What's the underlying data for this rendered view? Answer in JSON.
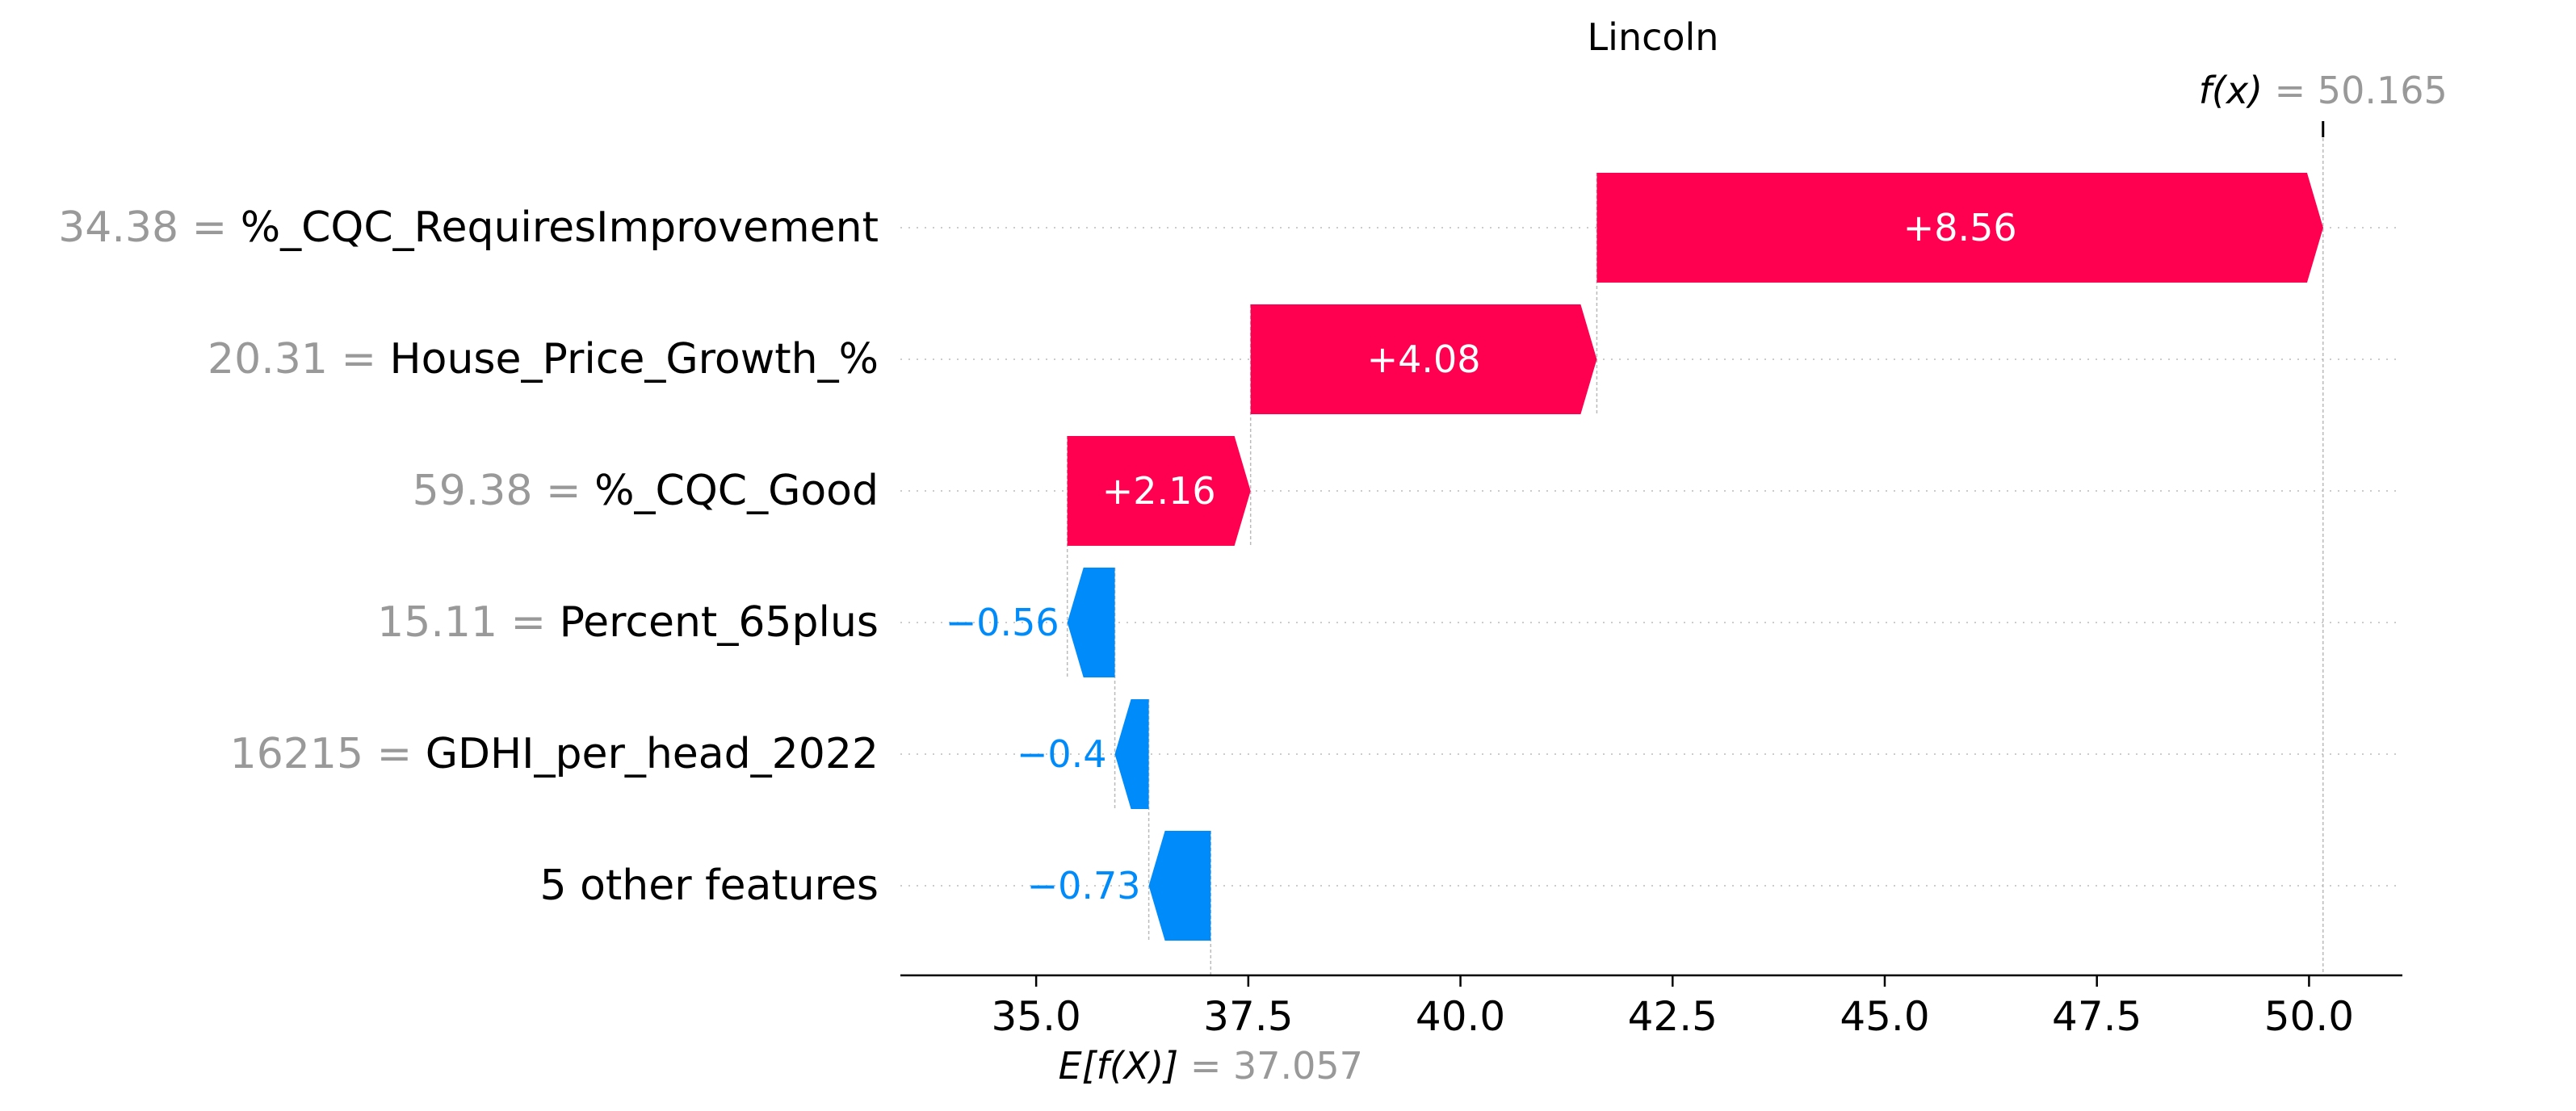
{
  "chart_data": {
    "type": "waterfall",
    "title": "Lincoln",
    "fx_label": "f(x)",
    "fx_value": "50.165",
    "base_label": "E[f(X)]",
    "base_value": "37.057",
    "base": 37.057,
    "final": 50.165,
    "xlim": [
      33.4,
      51.1
    ],
    "xticks": [
      35.0,
      37.5,
      40.0,
      42.5,
      45.0,
      47.5,
      50.0
    ],
    "xtick_labels": [
      "35.0",
      "37.5",
      "40.0",
      "42.5",
      "45.0",
      "47.5",
      "50.0"
    ],
    "features": [
      {
        "value": "34.38",
        "name": "%_CQC_RequiresImprovement",
        "contribution": 8.56,
        "label": "+8.56"
      },
      {
        "value": "20.31",
        "name": "House_Price_Growth_%",
        "contribution": 4.08,
        "label": "+4.08"
      },
      {
        "value": "59.38",
        "name": "%_CQC_Good",
        "contribution": 2.16,
        "label": "+2.16"
      },
      {
        "value": "15.11",
        "name": "Percent_65plus",
        "contribution": -0.56,
        "label": "−0.56"
      },
      {
        "value": "16215",
        "name": "GDHI_per_head_2022",
        "contribution": -0.4,
        "label": "−0.4"
      },
      {
        "value": "",
        "name": "5 other features",
        "contribution": -0.73,
        "label": "−0.73"
      }
    ],
    "colors": {
      "positive": "#ff0051",
      "negative": "#008bfb",
      "value_gray": "#999999",
      "text": "#000000"
    }
  }
}
